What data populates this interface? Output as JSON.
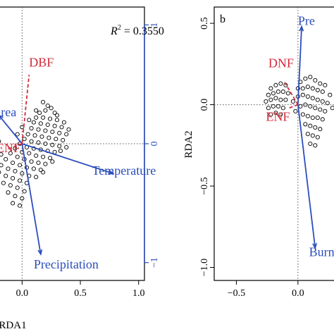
{
  "colors": {
    "frame": "#000000",
    "secondary_axis": "#2b4dbb",
    "env_arrow": "#2b4dbb",
    "species_arrow": "#d42a3a",
    "point": "#000000",
    "dotted": "#555555"
  },
  "chart_data": [
    {
      "type": "scatter",
      "panel_label": "",
      "xlabel": "RDA1",
      "ylabel": "",
      "xlim": [
        -0.25,
        1.05
      ],
      "ylim": [
        -1.15,
        1.15
      ],
      "x_ticks": [
        "0.0",
        "0.5",
        "1.0"
      ],
      "x_tick_values": [
        0.0,
        0.5,
        1.0
      ],
      "y2_ticks": [
        "1",
        "0",
        "−1"
      ],
      "y2_tick_values": [
        1,
        0,
        -1
      ],
      "grid": false,
      "annotation": {
        "prefix": "R",
        "sup": "2",
        "suffix": " = 0.3550",
        "x": 0.76,
        "y": 0.92
      },
      "env_vectors": [
        {
          "label": "Temperature",
          "x": 0.78,
          "y": -0.25,
          "lx": 0.6,
          "ly": -0.26
        },
        {
          "label": "Precipitation",
          "x": 0.16,
          "y": -0.93,
          "lx": 0.1,
          "ly": -1.05
        },
        {
          "label": "Area",
          "text": "area",
          "x": -0.2,
          "y": 0.24,
          "lx": -0.23,
          "ly": 0.23
        }
      ],
      "species_vectors": [
        {
          "label": "DBF",
          "x": 0.06,
          "y": 0.58,
          "lx": 0.06,
          "ly": 0.65
        },
        {
          "label": "ENF",
          "text": "ENF",
          "x": -0.14,
          "y": -0.05,
          "lx": -0.22,
          "ly": -0.07
        }
      ],
      "points": [
        [
          0.18,
          0.35
        ],
        [
          0.22,
          0.32
        ],
        [
          0.25,
          0.3
        ],
        [
          0.2,
          0.28
        ],
        [
          0.15,
          0.26
        ],
        [
          0.28,
          0.26
        ],
        [
          0.12,
          0.22
        ],
        [
          0.18,
          0.22
        ],
        [
          0.24,
          0.21
        ],
        [
          0.3,
          0.2
        ],
        [
          0.1,
          0.18
        ],
        [
          0.16,
          0.17
        ],
        [
          0.22,
          0.16
        ],
        [
          0.28,
          0.15
        ],
        [
          0.34,
          0.14
        ],
        [
          0.08,
          0.13
        ],
        [
          0.14,
          0.12
        ],
        [
          0.2,
          0.11
        ],
        [
          0.26,
          0.1
        ],
        [
          0.32,
          0.09
        ],
        [
          0.38,
          0.08
        ],
        [
          0.05,
          0.08
        ],
        [
          0.11,
          0.07
        ],
        [
          0.17,
          0.06
        ],
        [
          0.23,
          0.05
        ],
        [
          0.29,
          0.04
        ],
        [
          0.35,
          0.03
        ],
        [
          0.02,
          0.04
        ],
        [
          0.08,
          0.02
        ],
        [
          0.14,
          0.01
        ],
        [
          0.2,
          0.0
        ],
        [
          0.26,
          -0.01
        ],
        [
          0.32,
          -0.02
        ],
        [
          0.38,
          -0.03
        ],
        [
          -0.02,
          0.0
        ],
        [
          0.04,
          -0.03
        ],
        [
          0.1,
          -0.04
        ],
        [
          0.16,
          -0.05
        ],
        [
          0.22,
          -0.06
        ],
        [
          0.28,
          -0.07
        ],
        [
          -0.06,
          -0.04
        ],
        [
          0.0,
          -0.07
        ],
        [
          0.06,
          -0.08
        ],
        [
          0.12,
          -0.1
        ],
        [
          0.18,
          -0.11
        ],
        [
          0.24,
          -0.12
        ],
        [
          -0.1,
          -0.08
        ],
        [
          -0.04,
          -0.11
        ],
        [
          0.02,
          -0.13
        ],
        [
          0.08,
          -0.15
        ],
        [
          0.14,
          -0.16
        ],
        [
          0.2,
          -0.17
        ],
        [
          -0.14,
          -0.13
        ],
        [
          -0.08,
          -0.16
        ],
        [
          -0.02,
          -0.18
        ],
        [
          0.04,
          -0.2
        ],
        [
          0.1,
          -0.21
        ],
        [
          0.16,
          -0.22
        ],
        [
          -0.18,
          -0.18
        ],
        [
          -0.12,
          -0.21
        ],
        [
          -0.06,
          -0.23
        ],
        [
          0.0,
          -0.25
        ],
        [
          0.06,
          -0.27
        ],
        [
          0.12,
          -0.28
        ],
        [
          -0.2,
          -0.24
        ],
        [
          -0.14,
          -0.27
        ],
        [
          -0.08,
          -0.29
        ],
        [
          -0.02,
          -0.31
        ],
        [
          0.04,
          -0.33
        ],
        [
          -0.16,
          -0.33
        ],
        [
          -0.1,
          -0.35
        ],
        [
          -0.04,
          -0.37
        ],
        [
          0.02,
          -0.4
        ],
        [
          -0.12,
          -0.41
        ],
        [
          -0.06,
          -0.44
        ],
        [
          0.0,
          -0.46
        ],
        [
          -0.08,
          -0.5
        ],
        [
          -0.02,
          -0.52
        ],
        [
          -0.2,
          0.02
        ],
        [
          -0.22,
          -0.05
        ],
        [
          -0.18,
          -0.09
        ],
        [
          0.12,
          0.28
        ],
        [
          0.06,
          0.2
        ],
        [
          0.0,
          0.14
        ],
        [
          -0.04,
          0.08
        ],
        [
          0.3,
          0.24
        ],
        [
          0.36,
          0.18
        ],
        [
          0.4,
          0.12
        ],
        [
          0.33,
          -0.06
        ],
        [
          0.26,
          -0.15
        ],
        [
          0.18,
          -0.24
        ]
      ]
    },
    {
      "type": "scatter",
      "panel_label": "b",
      "xlabel": "",
      "ylabel": "RDA2",
      "xlim": [
        -0.68,
        0.35
      ],
      "ylim": [
        -1.08,
        0.6
      ],
      "x_ticks": [
        "−0.5",
        "0.0"
      ],
      "x_tick_values": [
        -0.5,
        0.0
      ],
      "y_ticks": [
        "0.5",
        "0.0",
        "−0.5",
        "−1.0"
      ],
      "y_tick_values": [
        0.5,
        0.0,
        -0.5,
        -1.0
      ],
      "grid": false,
      "env_vectors": [
        {
          "label": "Precipitation",
          "text": "Pre",
          "x": 0.03,
          "y": 0.48,
          "lx": 0.0,
          "ly": 0.49
        },
        {
          "label": "Burnt area",
          "text": "Burnt",
          "x": 0.14,
          "y": -0.88,
          "lx": 0.09,
          "ly": -0.93
        }
      ],
      "species_vectors": [
        {
          "label": "DNF",
          "x": -0.11,
          "y": 0.14,
          "lx": -0.24,
          "ly": 0.23
        },
        {
          "label": "ENF",
          "x": -0.07,
          "y": -0.02,
          "lx": -0.26,
          "ly": -0.1
        }
      ],
      "points": [
        [
          -0.22,
          0.1
        ],
        [
          -0.18,
          0.12
        ],
        [
          -0.14,
          0.13
        ],
        [
          -0.1,
          0.12
        ],
        [
          -0.24,
          0.06
        ],
        [
          -0.2,
          0.07
        ],
        [
          -0.16,
          0.08
        ],
        [
          -0.12,
          0.08
        ],
        [
          -0.08,
          0.07
        ],
        [
          -0.26,
          0.02
        ],
        [
          -0.22,
          0.03
        ],
        [
          -0.18,
          0.04
        ],
        [
          -0.14,
          0.03
        ],
        [
          -0.1,
          0.03
        ],
        [
          -0.24,
          -0.02
        ],
        [
          -0.2,
          -0.01
        ],
        [
          -0.16,
          -0.01
        ],
        [
          -0.12,
          -0.02
        ],
        [
          -0.22,
          -0.06
        ],
        [
          -0.18,
          -0.05
        ],
        [
          -0.14,
          -0.06
        ],
        [
          0.02,
          0.14
        ],
        [
          0.06,
          0.16
        ],
        [
          0.1,
          0.17
        ],
        [
          0.14,
          0.15
        ],
        [
          0.18,
          0.13
        ],
        [
          0.04,
          0.1
        ],
        [
          0.08,
          0.11
        ],
        [
          0.12,
          0.1
        ],
        [
          0.16,
          0.09
        ],
        [
          0.2,
          0.08
        ],
        [
          0.0,
          0.05
        ],
        [
          0.04,
          0.06
        ],
        [
          0.08,
          0.05
        ],
        [
          0.12,
          0.04
        ],
        [
          0.16,
          0.03
        ],
        [
          0.2,
          0.02
        ],
        [
          0.24,
          0.01
        ],
        [
          0.02,
          -0.01
        ],
        [
          0.06,
          0.0
        ],
        [
          0.1,
          -0.01
        ],
        [
          0.14,
          -0.02
        ],
        [
          0.18,
          -0.03
        ],
        [
          0.22,
          -0.04
        ],
        [
          0.04,
          -0.06
        ],
        [
          0.08,
          -0.07
        ],
        [
          0.12,
          -0.08
        ],
        [
          0.16,
          -0.08
        ],
        [
          0.2,
          -0.09
        ],
        [
          0.06,
          -0.12
        ],
        [
          0.1,
          -0.13
        ],
        [
          0.14,
          -0.14
        ],
        [
          0.18,
          -0.15
        ],
        [
          0.08,
          -0.18
        ],
        [
          0.12,
          -0.19
        ],
        [
          0.16,
          -0.2
        ],
        [
          0.1,
          -0.24
        ],
        [
          0.14,
          -0.25
        ],
        [
          0.26,
          0.06
        ],
        [
          0.28,
          -0.02
        ],
        [
          -0.04,
          0.02
        ],
        [
          -0.02,
          -0.04
        ],
        [
          0.0,
          0.1
        ],
        [
          0.22,
          0.12
        ]
      ]
    }
  ]
}
